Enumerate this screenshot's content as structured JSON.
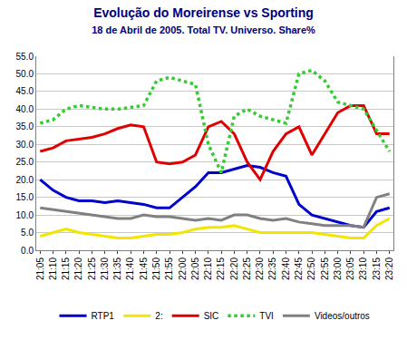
{
  "chart_data": {
    "type": "line",
    "title": "Evolução do Moreirense vs Sporting",
    "subtitle": "18 de Abril de 2005. Total TV. Universo. Share%",
    "categories": [
      "21:05",
      "21:10",
      "21:15",
      "21:20",
      "21:25",
      "21:30",
      "21:35",
      "21:40",
      "21:45",
      "21:50",
      "21:55",
      "22:00",
      "22:05",
      "22:10",
      "22:15",
      "22:20",
      "22:25",
      "22:30",
      "22:35",
      "22:40",
      "22:45",
      "22:50",
      "22:55",
      "23:00",
      "23:05",
      "23:10",
      "23:15",
      "23:20"
    ],
    "series": [
      {
        "name": "RTP1",
        "color": "#0000cc",
        "line_style": "solid",
        "values": [
          20,
          17,
          15,
          14,
          14,
          13.5,
          14,
          13.5,
          13,
          12,
          12,
          15,
          18,
          22,
          22,
          23,
          24,
          23.5,
          22,
          21,
          13,
          10,
          9,
          8,
          7,
          6.5,
          11,
          12
        ]
      },
      {
        "name": "2:",
        "color": "#f2e600",
        "line_style": "solid",
        "values": [
          4,
          5,
          6,
          5,
          4.5,
          4,
          3.5,
          3.5,
          4,
          4.5,
          4.5,
          5,
          6,
          6.5,
          6.5,
          7,
          6,
          5,
          5,
          5,
          5,
          5,
          4.5,
          4,
          3.5,
          3.5,
          7,
          9
        ]
      },
      {
        "name": "SIC",
        "color": "#e00000",
        "line_style": "solid",
        "values": [
          28,
          29,
          31,
          31.5,
          32,
          33,
          34.5,
          35.5,
          35,
          25,
          24.5,
          25,
          27,
          35,
          36.5,
          33,
          25,
          20,
          28,
          33,
          35,
          27,
          33,
          39,
          41,
          41,
          33,
          33
        ]
      },
      {
        "name": "TVI",
        "color": "#33cc33",
        "line_style": "dotted",
        "values": [
          36,
          37,
          40,
          41,
          40.5,
          40,
          40,
          40.5,
          41,
          48,
          49,
          48,
          47,
          30,
          22,
          38,
          40,
          38,
          37,
          36,
          50,
          51,
          48,
          42,
          41,
          40,
          34,
          28
        ]
      },
      {
        "name": "Videos/outros",
        "color": "#808080",
        "line_style": "solid",
        "values": [
          12,
          11.5,
          11,
          10.5,
          10,
          9.5,
          9,
          9,
          10,
          9.5,
          9.5,
          9,
          8.5,
          9,
          8.5,
          10,
          10,
          9,
          8.5,
          9,
          8,
          7.5,
          7,
          7,
          7,
          6.5,
          15,
          16
        ]
      }
    ],
    "ylim": [
      0,
      55
    ],
    "yticks": [
      {
        "value": 0,
        "label": "0.0"
      },
      {
        "value": 5,
        "label": "5.0"
      },
      {
        "value": 10,
        "label": "10.0"
      },
      {
        "value": 15,
        "label": "15.0"
      },
      {
        "value": 20,
        "label": "20.0"
      },
      {
        "value": 25,
        "label": "25.0"
      },
      {
        "value": 30,
        "label": "30.0"
      },
      {
        "value": 35,
        "label": "35.0"
      },
      {
        "value": 40,
        "label": "40.0"
      },
      {
        "value": 45,
        "label": "45.0"
      },
      {
        "value": 50,
        "label": "50.0"
      },
      {
        "value": 55,
        "label": "55.0"
      }
    ],
    "grid": true,
    "legend": "bottom"
  }
}
